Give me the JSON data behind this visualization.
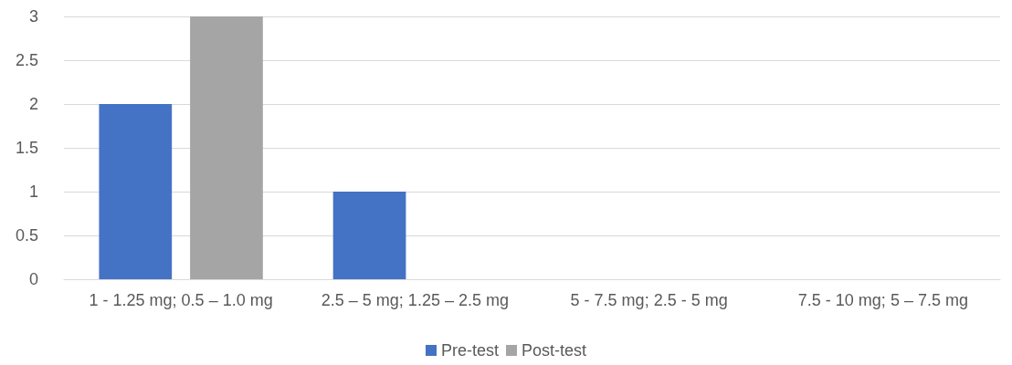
{
  "chart_data": {
    "type": "bar",
    "categories": [
      "1 - 1.25 mg; 0.5 – 1.0 mg",
      "2.5 – 5 mg; 1.25 – 2.5 mg",
      "5 - 7.5 mg; 2.5 - 5 mg",
      "7.5 - 10 mg; 5 – 7.5 mg"
    ],
    "series": [
      {
        "name": "Pre-test",
        "color": "#4472c4",
        "values": [
          2,
          1,
          0,
          0
        ]
      },
      {
        "name": "Post-test",
        "color": "#a5a5a5",
        "values": [
          3,
          0,
          0,
          0
        ]
      }
    ],
    "ylim": [
      0,
      3
    ],
    "yticks": [
      0,
      0.5,
      1,
      1.5,
      2,
      2.5,
      3
    ],
    "grid": "y",
    "legend": "bottom"
  }
}
